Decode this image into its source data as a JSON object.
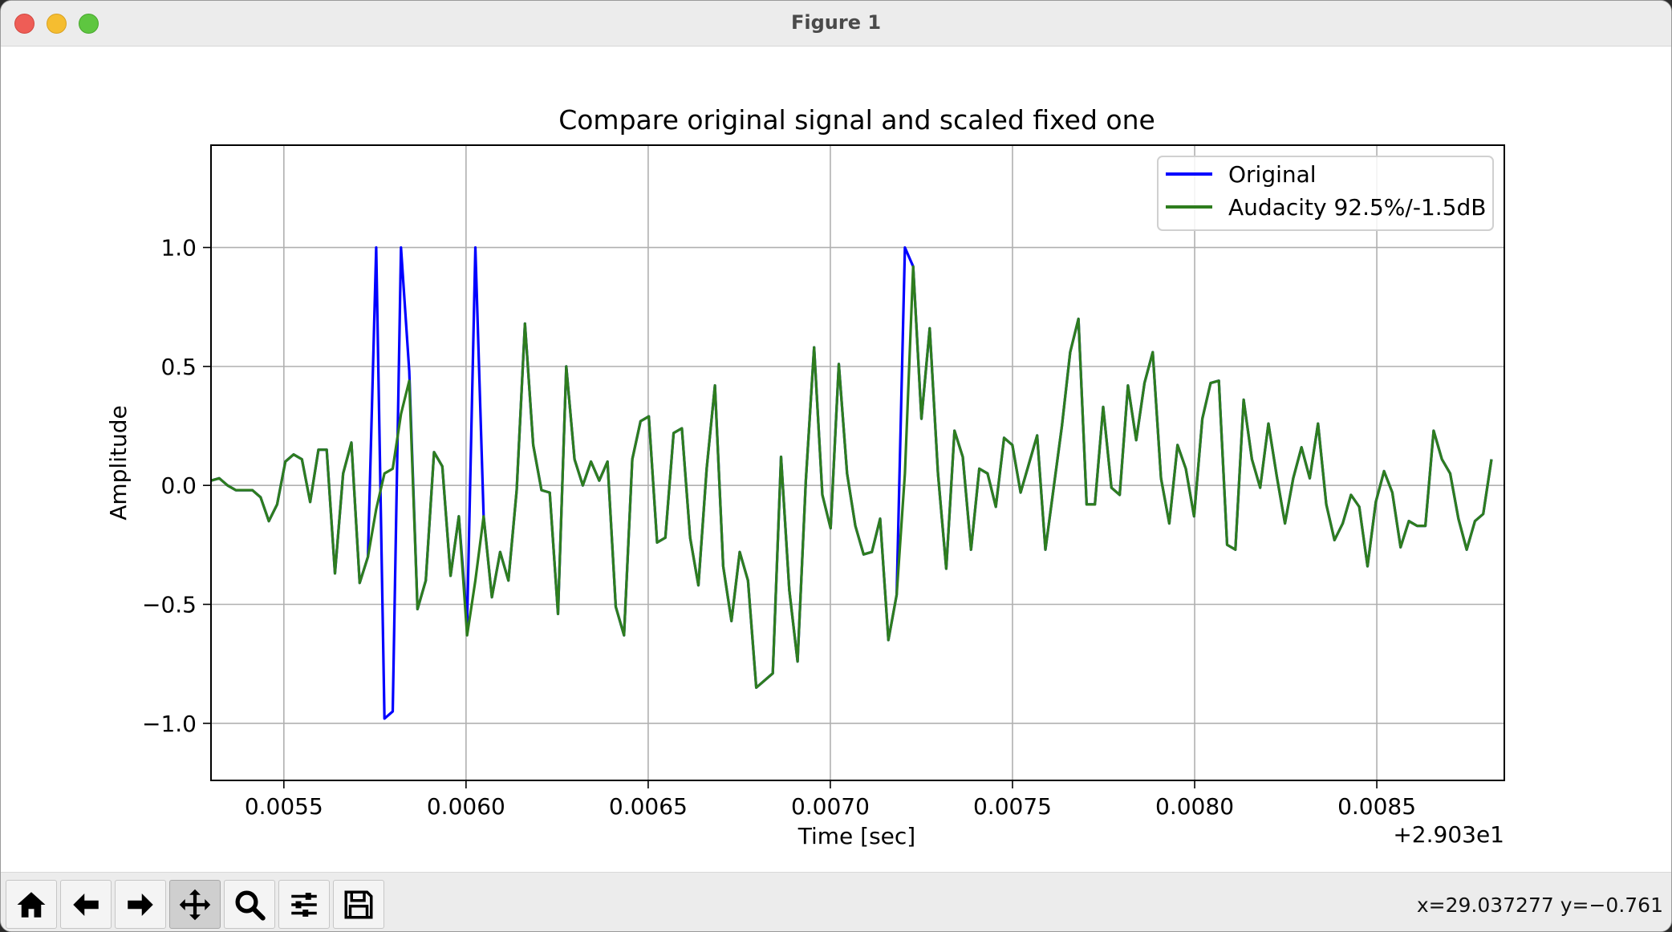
{
  "window": {
    "title": "Figure 1"
  },
  "chart_data": {
    "type": "line",
    "title": "Compare original signal and scaled fixed one",
    "xlabel": "Time [sec]",
    "ylabel": "Amplitude",
    "x_offset_label": "+2.903e1",
    "xlim": [
      0.0053,
      0.00885
    ],
    "ylim": [
      -1.24,
      1.43
    ],
    "x_ticks": [
      0.0055,
      0.006,
      0.0065,
      0.007,
      0.0075,
      0.008,
      0.0085
    ],
    "x_tick_labels": [
      "0.0055",
      "0.0060",
      "0.0065",
      "0.0070",
      "0.0075",
      "0.0080",
      "0.0085"
    ],
    "y_ticks": [
      1.0,
      0.5,
      0.0,
      -0.5,
      -1.0
    ],
    "y_tick_labels": [
      "1.0",
      "0.5",
      "0.0",
      "−0.5",
      "−1.0"
    ],
    "grid": true,
    "legend_position": "top-right",
    "x_step": 2.26757e-05,
    "x_start": 0.0053,
    "series": [
      {
        "name": "Original",
        "color": "#0000ff",
        "values": [
          0.02,
          0.03,
          0.0,
          -0.02,
          -0.02,
          -0.02,
          -0.05,
          -0.15,
          -0.08,
          0.1,
          0.13,
          0.11,
          -0.07,
          0.15,
          0.15,
          -0.37,
          0.05,
          0.18,
          -0.41,
          -0.3,
          1.0,
          -0.98,
          -0.95,
          1.0,
          0.48,
          -0.52,
          -0.4,
          0.14,
          0.08,
          -0.38,
          -0.13,
          -0.58,
          1.0,
          -0.13,
          -0.47,
          -0.28,
          -0.4,
          -0.02,
          0.68,
          0.17,
          -0.02,
          -0.03,
          -0.54,
          0.5,
          0.11,
          0.0,
          0.1,
          0.02,
          0.1,
          -0.51,
          -0.63,
          0.11,
          0.27,
          0.29,
          -0.24,
          -0.22,
          0.22,
          0.24,
          -0.22,
          -0.42,
          0.07,
          0.42,
          -0.34,
          -0.57,
          -0.28,
          -0.4,
          -0.85,
          -0.82,
          -0.79,
          0.12,
          -0.44,
          -0.74,
          0.02,
          0.58,
          -0.04,
          -0.18,
          0.51,
          0.05,
          -0.17,
          -0.29,
          -0.28,
          -0.14,
          -0.65,
          -0.46,
          1.0,
          0.92,
          0.28,
          0.66,
          0.05,
          -0.35,
          0.23,
          0.12,
          -0.27,
          0.07,
          0.05,
          -0.09,
          0.2,
          0.17,
          -0.03,
          0.09,
          0.21,
          -0.27,
          -0.01,
          0.25,
          0.56,
          0.7,
          -0.08,
          -0.08,
          0.33,
          -0.01,
          -0.04,
          0.42,
          0.19,
          0.43,
          0.56,
          0.03,
          -0.16,
          0.17,
          0.07,
          -0.13,
          0.28,
          0.43,
          0.44,
          -0.25,
          -0.27,
          0.36,
          0.11,
          -0.01,
          0.26,
          0.04,
          -0.16,
          0.03,
          0.16,
          0.03,
          0.26,
          -0.08,
          -0.23,
          -0.16,
          -0.04,
          -0.09,
          -0.34,
          -0.07,
          0.06,
          -0.03,
          -0.26,
          -0.15,
          -0.17,
          -0.17,
          0.23,
          0.11,
          0.05,
          -0.14,
          -0.27,
          -0.15,
          -0.12,
          0.11
        ]
      },
      {
        "name": "Audacity 92.5%/-1.5dB",
        "color": "#2e7d1e",
        "values": [
          0.02,
          0.03,
          0.0,
          -0.02,
          -0.02,
          -0.02,
          -0.05,
          -0.15,
          -0.08,
          0.1,
          0.13,
          0.11,
          -0.07,
          0.15,
          0.15,
          -0.37,
          0.05,
          0.18,
          -0.41,
          -0.3,
          -0.1,
          0.05,
          0.07,
          0.3,
          0.44,
          -0.52,
          -0.4,
          0.14,
          0.08,
          -0.38,
          -0.13,
          -0.63,
          -0.4,
          -0.13,
          -0.47,
          -0.28,
          -0.4,
          -0.02,
          0.68,
          0.17,
          -0.02,
          -0.03,
          -0.54,
          0.5,
          0.11,
          0.0,
          0.1,
          0.02,
          0.1,
          -0.51,
          -0.63,
          0.11,
          0.27,
          0.29,
          -0.24,
          -0.22,
          0.22,
          0.24,
          -0.22,
          -0.42,
          0.07,
          0.42,
          -0.34,
          -0.57,
          -0.28,
          -0.4,
          -0.85,
          -0.82,
          -0.79,
          0.12,
          -0.44,
          -0.74,
          0.02,
          0.58,
          -0.04,
          -0.18,
          0.51,
          0.05,
          -0.17,
          -0.29,
          -0.28,
          -0.14,
          -0.65,
          -0.46,
          0.05,
          0.92,
          0.28,
          0.66,
          0.05,
          -0.35,
          0.23,
          0.12,
          -0.27,
          0.07,
          0.05,
          -0.09,
          0.2,
          0.17,
          -0.03,
          0.09,
          0.21,
          -0.27,
          -0.01,
          0.25,
          0.56,
          0.7,
          -0.08,
          -0.08,
          0.33,
          -0.01,
          -0.04,
          0.42,
          0.19,
          0.43,
          0.56,
          0.03,
          -0.16,
          0.17,
          0.07,
          -0.13,
          0.28,
          0.43,
          0.44,
          -0.25,
          -0.27,
          0.36,
          0.11,
          -0.01,
          0.26,
          0.04,
          -0.16,
          0.03,
          0.16,
          0.03,
          0.26,
          -0.08,
          -0.23,
          -0.16,
          -0.04,
          -0.09,
          -0.34,
          -0.07,
          0.06,
          -0.03,
          -0.26,
          -0.15,
          -0.17,
          -0.17,
          0.23,
          0.11,
          0.05,
          -0.14,
          -0.27,
          -0.15,
          -0.12,
          0.11
        ]
      }
    ]
  },
  "toolbar": {
    "buttons": [
      {
        "name": "home-button",
        "icon": "home-icon"
      },
      {
        "name": "back-button",
        "icon": "arrow-left-icon"
      },
      {
        "name": "forward-button",
        "icon": "arrow-right-icon"
      },
      {
        "name": "pan-button",
        "icon": "move-icon",
        "active": true
      },
      {
        "name": "zoom-button",
        "icon": "magnifier-icon"
      },
      {
        "name": "configure-subplots-button",
        "icon": "sliders-icon"
      },
      {
        "name": "save-button",
        "icon": "floppy-disk-icon"
      }
    ],
    "coords": "x=29.037277 y=−0.761"
  }
}
